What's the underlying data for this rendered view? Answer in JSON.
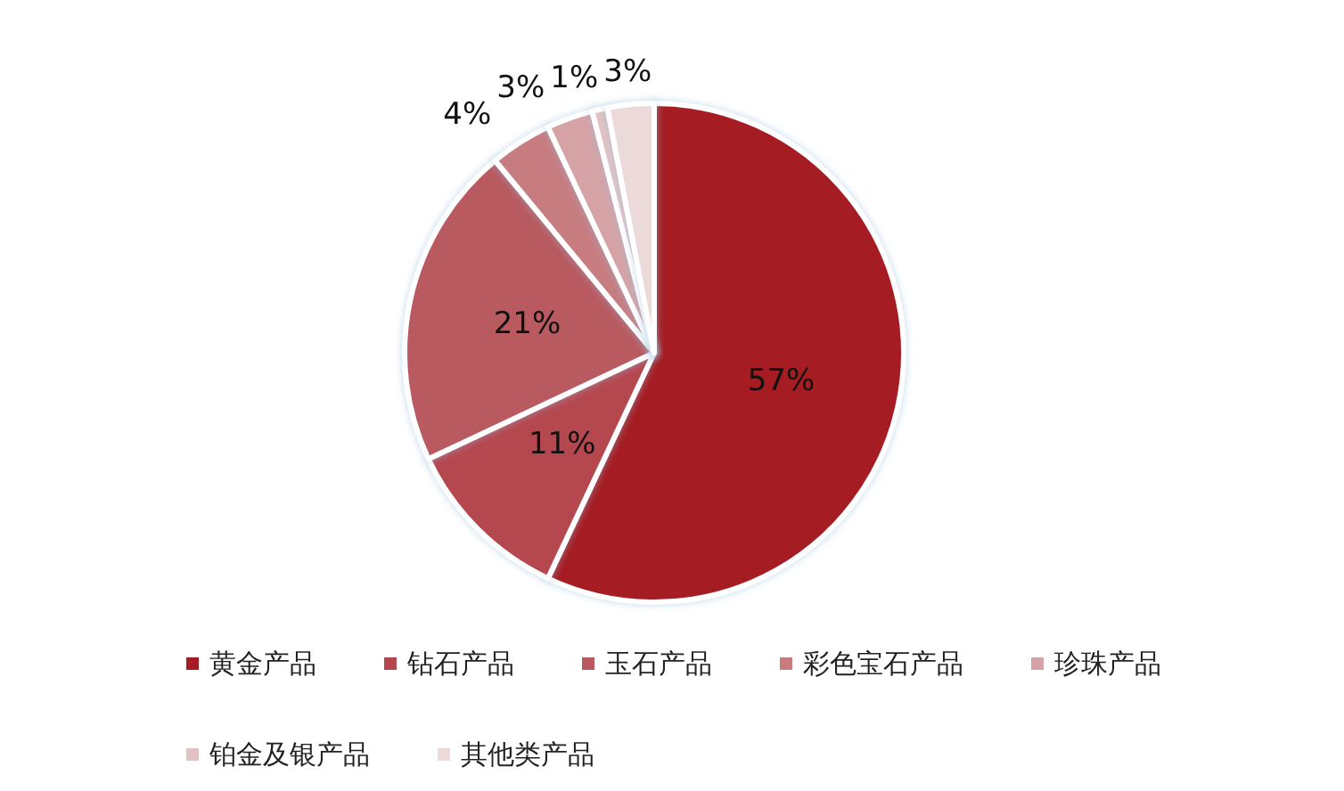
{
  "chart_data": {
    "type": "pie",
    "categories": [
      "黄金产品",
      "钻石产品",
      "玉石产品",
      "彩色宝石产品",
      "珍珠产品",
      "铂金及银产品",
      "其他类产品"
    ],
    "values": [
      57,
      11,
      21,
      4,
      3,
      1,
      3
    ],
    "colors": [
      "#a51c24",
      "#b5464f",
      "#b85a60",
      "#c77c80",
      "#d5a3a6",
      "#e0c2c4",
      "#ecd9da"
    ],
    "value_labels": [
      "57%",
      "11%",
      "21%",
      "4%",
      "3%",
      "1%",
      "3%"
    ],
    "legend": "bottom"
  }
}
